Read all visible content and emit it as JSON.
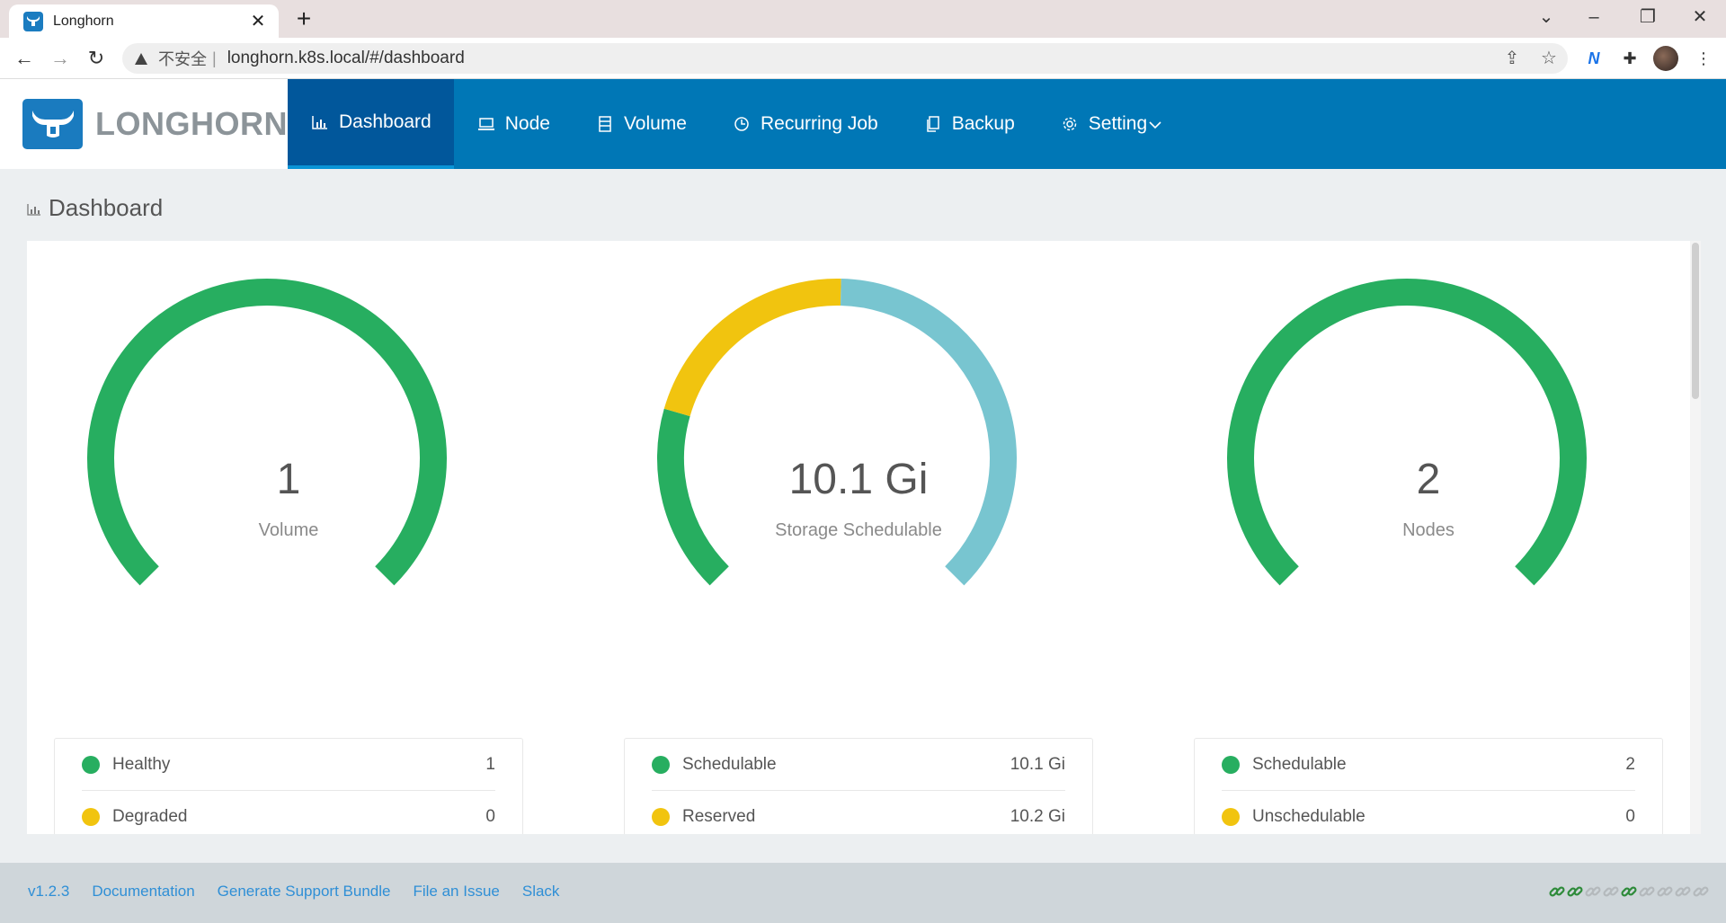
{
  "browser": {
    "tab_title": "Longhorn",
    "insecure_label": "不安全",
    "separator": "|",
    "url": "longhorn.k8s.local/#/dashboard"
  },
  "brand": {
    "name": "LONGHORN"
  },
  "nav": [
    {
      "label": "Dashboard",
      "icon": "bar-chart-icon",
      "active": true
    },
    {
      "label": "Node",
      "icon": "laptop-icon",
      "active": false
    },
    {
      "label": "Volume",
      "icon": "database-icon",
      "active": false
    },
    {
      "label": "Recurring Job",
      "icon": "clock-icon",
      "active": false
    },
    {
      "label": "Backup",
      "icon": "copy-icon",
      "active": false
    },
    {
      "label": "Setting",
      "icon": "gear-icon",
      "active": false
    }
  ],
  "page": {
    "title": "Dashboard"
  },
  "cards": [
    {
      "value": "1",
      "label": "Volume",
      "gauge_segments": [
        {
          "fraction": 1.0,
          "color": "#27ae60"
        }
      ],
      "legend": [
        {
          "name": "Healthy",
          "value": "1",
          "color": "#27ae60"
        },
        {
          "name": "Degraded",
          "value": "0",
          "color": "#f1c40f"
        }
      ]
    },
    {
      "value": "10.1 Gi",
      "label": "Storage Schedulable",
      "gauge_segments": [
        {
          "fraction": 0.226,
          "color": "#27ae60"
        },
        {
          "fraction": 0.279,
          "color": "#f1c40f"
        },
        {
          "fraction": 0.495,
          "color": "#78c5d0"
        }
      ],
      "legend": [
        {
          "name": "Schedulable",
          "value": "10.1 Gi",
          "color": "#27ae60"
        },
        {
          "name": "Reserved",
          "value": "10.2 Gi",
          "color": "#f1c40f"
        }
      ]
    },
    {
      "value": "2",
      "label": "Nodes",
      "gauge_segments": [
        {
          "fraction": 1.0,
          "color": "#27ae60"
        }
      ],
      "legend": [
        {
          "name": "Schedulable",
          "value": "2",
          "color": "#27ae60"
        },
        {
          "name": "Unschedulable",
          "value": "0",
          "color": "#f1c40f"
        }
      ]
    }
  ],
  "footer": {
    "version": "v1.2.3",
    "links": [
      "Documentation",
      "Generate Support Bundle",
      "File an Issue",
      "Slack"
    ],
    "connection_status": [
      "active",
      "active",
      "inactive",
      "inactive",
      "active",
      "inactive",
      "inactive",
      "inactive",
      "inactive"
    ],
    "colors": {
      "active": "#2e8b3a",
      "inactive": "#b4b9bc"
    }
  }
}
